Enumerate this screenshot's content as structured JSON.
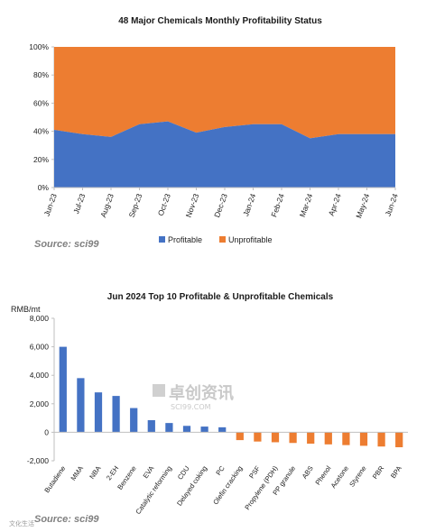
{
  "chart_data": [
    {
      "type": "area",
      "title": "48 Major Chemicals Monthly Profitability Status",
      "categories": [
        "Jun-23",
        "Jul-23",
        "Aug-23",
        "Sep-23",
        "Oct-23",
        "Nov-23",
        "Dec-23",
        "Jan-24",
        "Feb-24",
        "Mar-24",
        "Apr-24",
        "May-24",
        "Jun-24"
      ],
      "series": [
        {
          "name": "Profitable",
          "values": [
            41,
            38,
            36,
            45,
            47,
            39,
            43,
            45,
            45,
            35,
            38,
            38,
            38
          ],
          "color": "#4472c4"
        },
        {
          "name": "Unprofitable",
          "values": [
            59,
            62,
            64,
            55,
            53,
            61,
            57,
            55,
            55,
            65,
            62,
            62,
            62
          ],
          "color": "#ed7d31"
        }
      ],
      "stacked": true,
      "ylim": [
        0,
        100
      ],
      "yticks": [
        "0%",
        "20%",
        "40%",
        "60%",
        "80%",
        "100%"
      ],
      "xlabel": "",
      "ylabel": "",
      "grid": false,
      "legend": "bottom"
    },
    {
      "type": "bar",
      "title": "Jun 2024 Top 10 Profitable & Unprofitable Chemicals",
      "unit_label": "RMB/mt",
      "categories": [
        "Butadiene",
        "MMA",
        "NBA",
        "2-EH",
        "Benzene",
        "EVA",
        "Catalytic reforming",
        "CDU",
        "Delayed coking",
        "PC",
        "Olefin cracking",
        "PSF",
        "Propylene (PDH)",
        "PP granule",
        "ABS",
        "Phenol",
        "Acetone",
        "Styrene",
        "PBR",
        "BPA"
      ],
      "values": [
        6000,
        3800,
        2800,
        2550,
        1700,
        850,
        650,
        450,
        400,
        350,
        -550,
        -650,
        -700,
        -750,
        -800,
        -850,
        -900,
        -950,
        -1000,
        -1050
      ],
      "ylim": [
        -2000,
        8000
      ],
      "yticks": [
        "-2,000",
        "0",
        "2,000",
        "4,000",
        "6,000",
        "8,000"
      ],
      "colors": {
        "positive": "#4472c4",
        "negative": "#ed7d31"
      },
      "xlabel": "",
      "ylabel": "",
      "grid": false
    }
  ],
  "sources": [
    "Source: sci99",
    "Source: sci99"
  ],
  "watermark": {
    "cn": "卓创资讯",
    "en": "SCI99.COM",
    "corner": "文化生活"
  }
}
